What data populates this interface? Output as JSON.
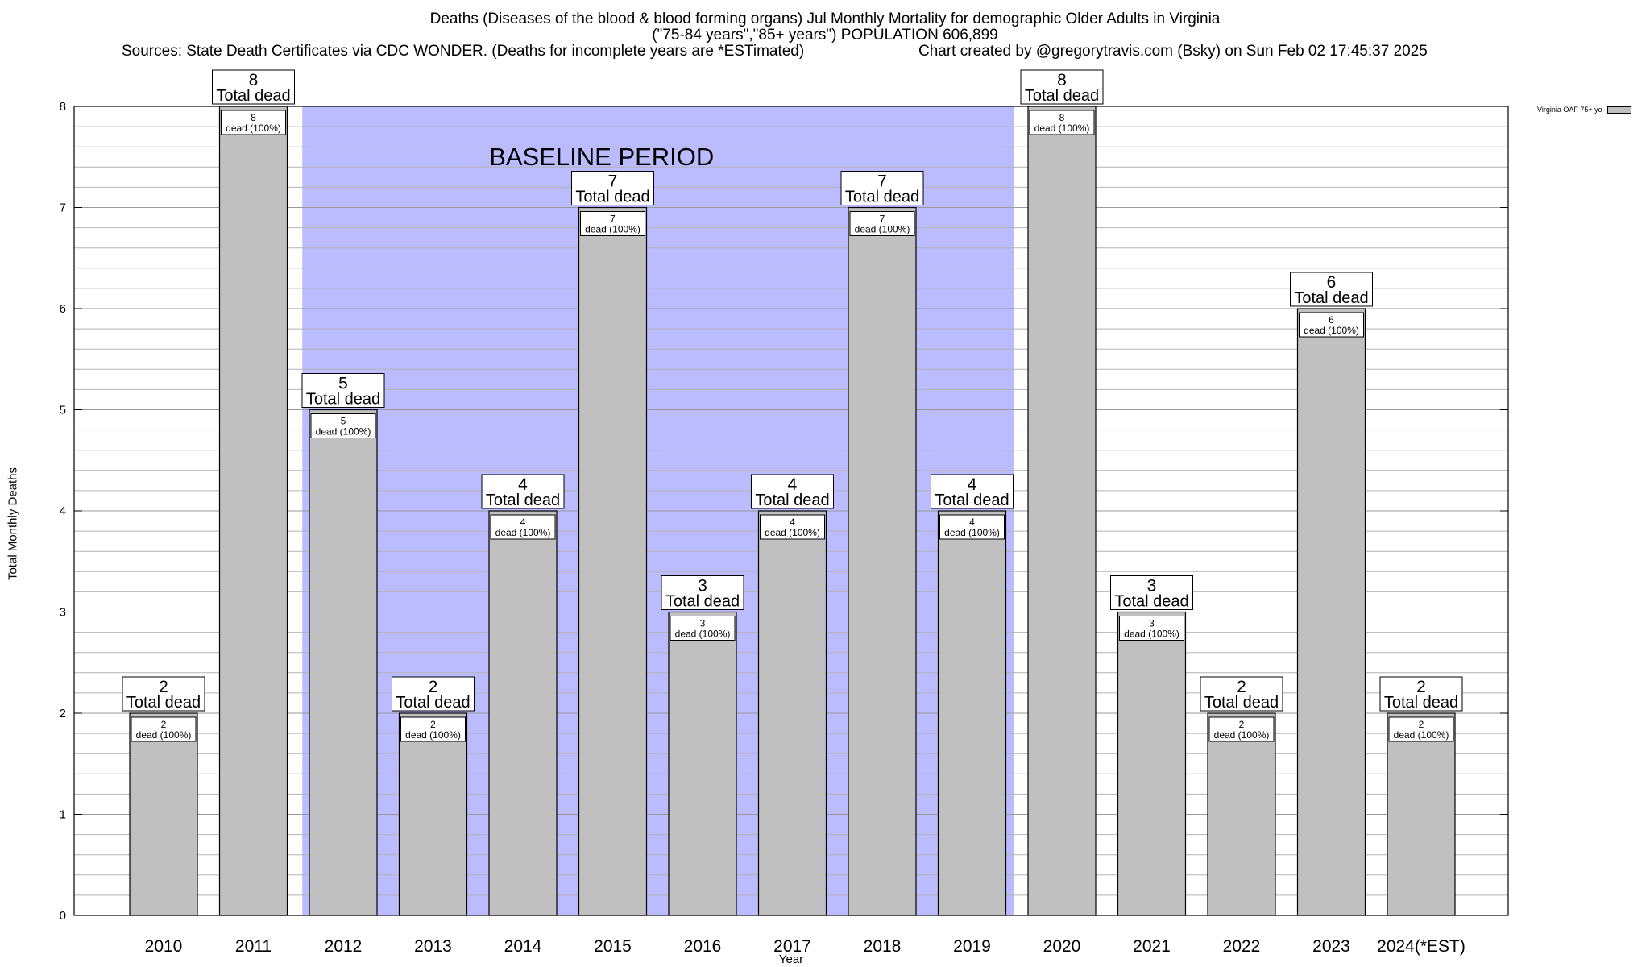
{
  "header": {
    "title_line1": "Deaths (Diseases of the blood & blood forming organs) Jul Monthly Mortality for demographic Older Adults in Virginia",
    "title_line2": "(\"75-84 years\",\"85+ years\") POPULATION 606,899",
    "sources": "Sources: State Death Certificates via CDC WONDER. (Deaths for incomplete years are *ESTimated)",
    "credit": "Chart created by @gregorytravis.com (Bsky) on Sun Feb 02 17:45:37 2025"
  },
  "legend": {
    "label": "Virginia OAF 75+ yo"
  },
  "chart_data": {
    "type": "bar",
    "title": "Deaths (Diseases of the blood & blood forming organs) Jul Monthly Mortality for demographic Older Adults in Virginia",
    "xlabel": "Year",
    "ylabel": "Total Monthly Deaths",
    "ylim": [
      0,
      8
    ],
    "yticks": [
      "0",
      "1",
      "2",
      "3",
      "4",
      "5",
      "6",
      "7",
      "8"
    ],
    "grid": true,
    "legend_position": "top-right, outside plot",
    "categories": [
      "2010",
      "2011",
      "2012",
      "2013",
      "2014",
      "2015",
      "2016",
      "2017",
      "2018",
      "2019",
      "2020",
      "2021",
      "2022",
      "2023",
      "2024(*EST)"
    ],
    "series": [
      {
        "name": "Virginia OAF 75+ yo",
        "values": [
          2,
          8,
          5,
          2,
          4,
          7,
          3,
          4,
          7,
          4,
          8,
          3,
          2,
          6,
          2
        ],
        "color": "#c0c0c0"
      }
    ],
    "total_label_suffix": "Total dead",
    "inner_label_suffix": "dead (100%)",
    "baseline_period": {
      "label": "BASELINE PERIOD",
      "start_category": "2012",
      "end_category": "2019",
      "color": "#bbbbff"
    }
  }
}
